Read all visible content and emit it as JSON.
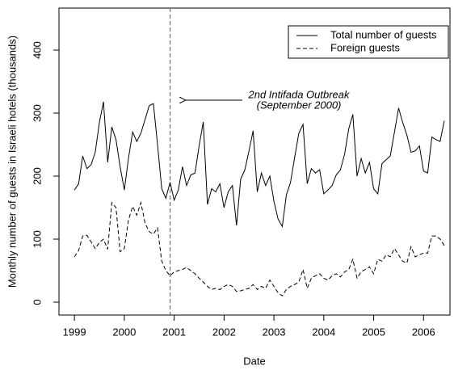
{
  "chart_data": {
    "type": "line",
    "x_label": "Date",
    "y_label": "Monthly number of guests in Israeli hotels (thousands)",
    "x": [
      1999,
      1999.083,
      1999.167,
      1999.25,
      1999.333,
      1999.417,
      1999.5,
      1999.583,
      1999.667,
      1999.75,
      1999.833,
      1999.917,
      2000,
      2000.083,
      2000.167,
      2000.25,
      2000.333,
      2000.417,
      2000.5,
      2000.583,
      2000.667,
      2000.75,
      2000.833,
      2000.917,
      2001,
      2001.083,
      2001.167,
      2001.25,
      2001.333,
      2001.417,
      2001.5,
      2001.583,
      2001.667,
      2001.75,
      2001.833,
      2001.917,
      2002,
      2002.083,
      2002.167,
      2002.25,
      2002.333,
      2002.417,
      2002.5,
      2002.583,
      2002.667,
      2002.75,
      2002.833,
      2002.917,
      2003,
      2003.083,
      2003.167,
      2003.25,
      2003.333,
      2003.417,
      2003.5,
      2003.583,
      2003.667,
      2003.75,
      2003.833,
      2003.917,
      2004,
      2004.083,
      2004.167,
      2004.25,
      2004.333,
      2004.417,
      2004.5,
      2004.583,
      2004.667,
      2004.75,
      2004.833,
      2004.917,
      2005,
      2005.083,
      2005.167,
      2005.25,
      2005.333,
      2005.417,
      2005.5,
      2005.583,
      2005.667,
      2005.75,
      2005.833,
      2005.917,
      2006,
      2006.083,
      2006.167,
      2006.25,
      2006.333,
      2006.417
    ],
    "series": [
      {
        "name": "Total number of guests",
        "color": "#000000",
        "dash": false,
        "values": [
          178,
          188,
          232,
          212,
          218,
          238,
          285,
          318,
          222,
          278,
          258,
          215,
          178,
          228,
          270,
          255,
          268,
          290,
          312,
          315,
          250,
          180,
          165,
          190,
          162,
          178,
          215,
          185,
          202,
          205,
          248,
          286,
          155,
          180,
          175,
          188,
          150,
          175,
          185,
          122,
          195,
          210,
          240,
          272,
          175,
          205,
          185,
          200,
          160,
          132,
          120,
          170,
          190,
          230,
          268,
          282,
          188,
          212,
          205,
          210,
          172,
          178,
          185,
          202,
          210,
          235,
          275,
          298,
          200,
          228,
          205,
          222,
          180,
          172,
          220,
          226,
          232,
          270,
          308,
          285,
          265,
          238,
          240,
          248,
          208,
          205,
          262,
          258,
          255,
          288
        ]
      },
      {
        "name": "Foreign guests",
        "color": "#000000",
        "dash": true,
        "values": [
          72,
          82,
          105,
          106,
          96,
          85,
          95,
          100,
          84,
          158,
          150,
          80,
          85,
          130,
          152,
          138,
          158,
          125,
          112,
          108,
          118,
          65,
          50,
          42,
          48,
          50,
          52,
          55,
          50,
          45,
          38,
          32,
          25,
          20,
          22,
          20,
          25,
          28,
          25,
          17,
          18,
          20,
          22,
          28,
          20,
          25,
          22,
          35,
          25,
          15,
          10,
          20,
          25,
          28,
          32,
          52,
          22,
          38,
          42,
          45,
          38,
          35,
          42,
          45,
          40,
          48,
          52,
          68,
          38,
          48,
          52,
          56,
          45,
          68,
          65,
          75,
          72,
          85,
          75,
          65,
          62,
          88,
          72,
          75,
          78,
          78,
          105,
          105,
          100,
          90
        ]
      }
    ],
    "xlim": [
      1998.69,
      2006.53
    ],
    "ylim": [
      -20.5,
      466.7
    ],
    "xticks": [
      1999,
      2000,
      2001,
      2002,
      2003,
      2004,
      2005,
      2006
    ],
    "yticks": [
      0,
      100,
      200,
      300,
      400
    ],
    "event_x": 2000.92,
    "annotation": [
      "2nd Intifada Outbreak",
      "(September 2000)"
    ],
    "legend": "topright"
  }
}
